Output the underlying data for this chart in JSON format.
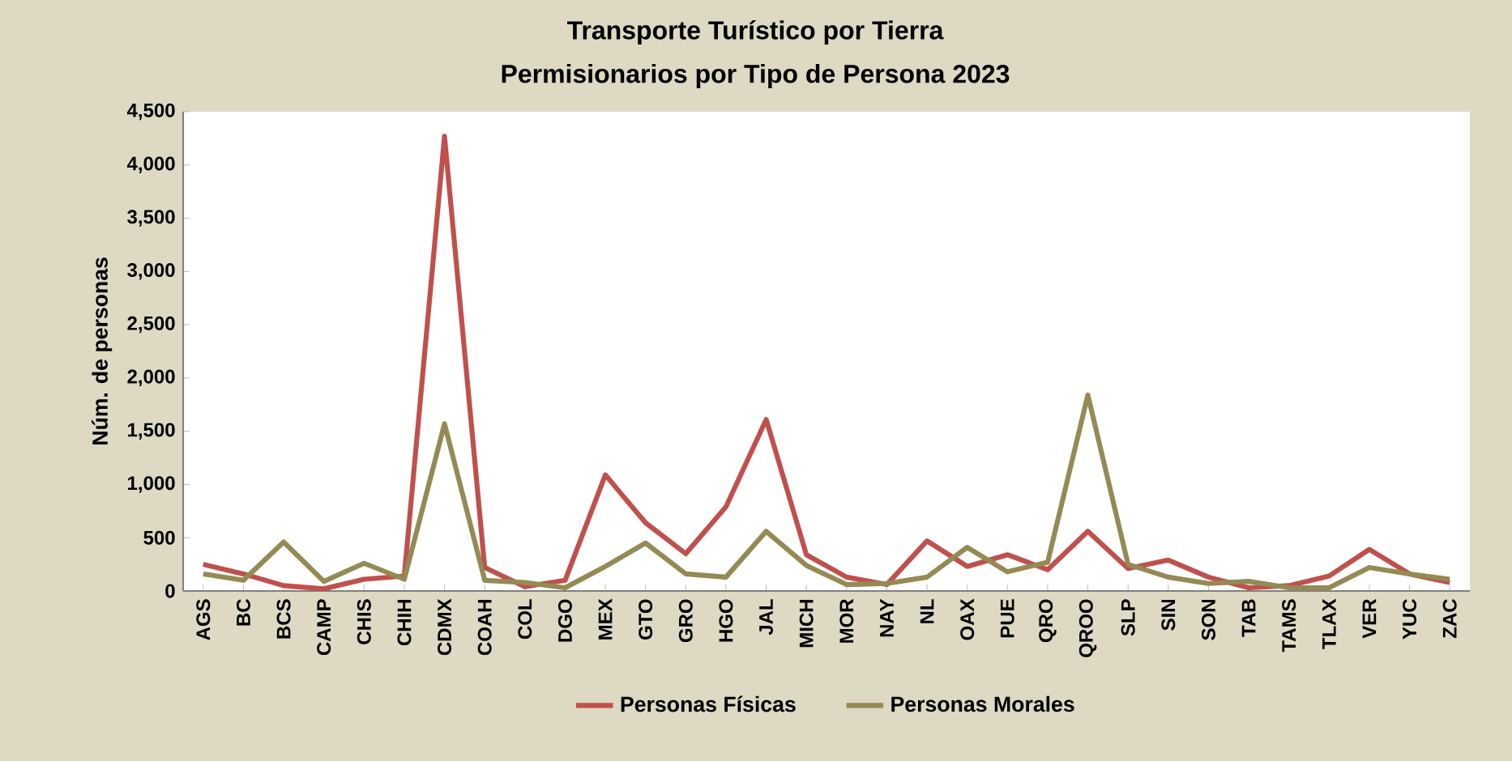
{
  "chart_data": {
    "type": "line",
    "title": "Transporte Turístico por Tierra",
    "subtitle": "Permisionarios por Tipo de Persona 2023",
    "ylabel": "Núm. de personas",
    "categories": [
      "AGS",
      "BC",
      "BCS",
      "CAMP",
      "CHIS",
      "CHIH",
      "CDMX",
      "COAH",
      "COL",
      "DGO",
      "MEX",
      "GTO",
      "GRO",
      "HGO",
      "JAL",
      "MICH",
      "MOR",
      "NAY",
      "NL",
      "OAX",
      "PUE",
      "QRO",
      "QROO",
      "SLP",
      "SIN",
      "SON",
      "TAB",
      "TAMS",
      "TLAX",
      "VER",
      "YUC",
      "ZAC"
    ],
    "series": [
      {
        "name": "Personas Físicas",
        "color": "#c0504d",
        "values": [
          250,
          160,
          50,
          20,
          110,
          140,
          4270,
          220,
          40,
          100,
          1090,
          640,
          350,
          790,
          1610,
          340,
          130,
          60,
          470,
          230,
          340,
          200,
          560,
          210,
          290,
          130,
          30,
          50,
          140,
          390,
          160,
          80
        ]
      },
      {
        "name": "Personas Morales",
        "color": "#948a54",
        "values": [
          160,
          100,
          460,
          90,
          260,
          110,
          1570,
          100,
          80,
          30,
          230,
          450,
          160,
          130,
          560,
          240,
          60,
          70,
          130,
          410,
          180,
          270,
          1840,
          250,
          130,
          70,
          90,
          30,
          30,
          220,
          160,
          110
        ]
      }
    ],
    "ylim": [
      0,
      4500
    ],
    "yticks": [
      0,
      500,
      {
        "value": 1000,
        "label": "1,000"
      },
      {
        "value": 1500,
        "label": "1,500"
      },
      {
        "value": 2000,
        "label": "2,000"
      },
      {
        "value": 2500,
        "label": "2,500"
      },
      {
        "value": 3000,
        "label": "3,000"
      },
      {
        "value": 3500,
        "label": "3,500"
      },
      {
        "value": 4000,
        "label": "4,000"
      },
      {
        "value": 4500,
        "label": "4,500"
      }
    ],
    "grid": false,
    "legend": "bottom",
    "marker": "none",
    "line_style": "solid"
  }
}
